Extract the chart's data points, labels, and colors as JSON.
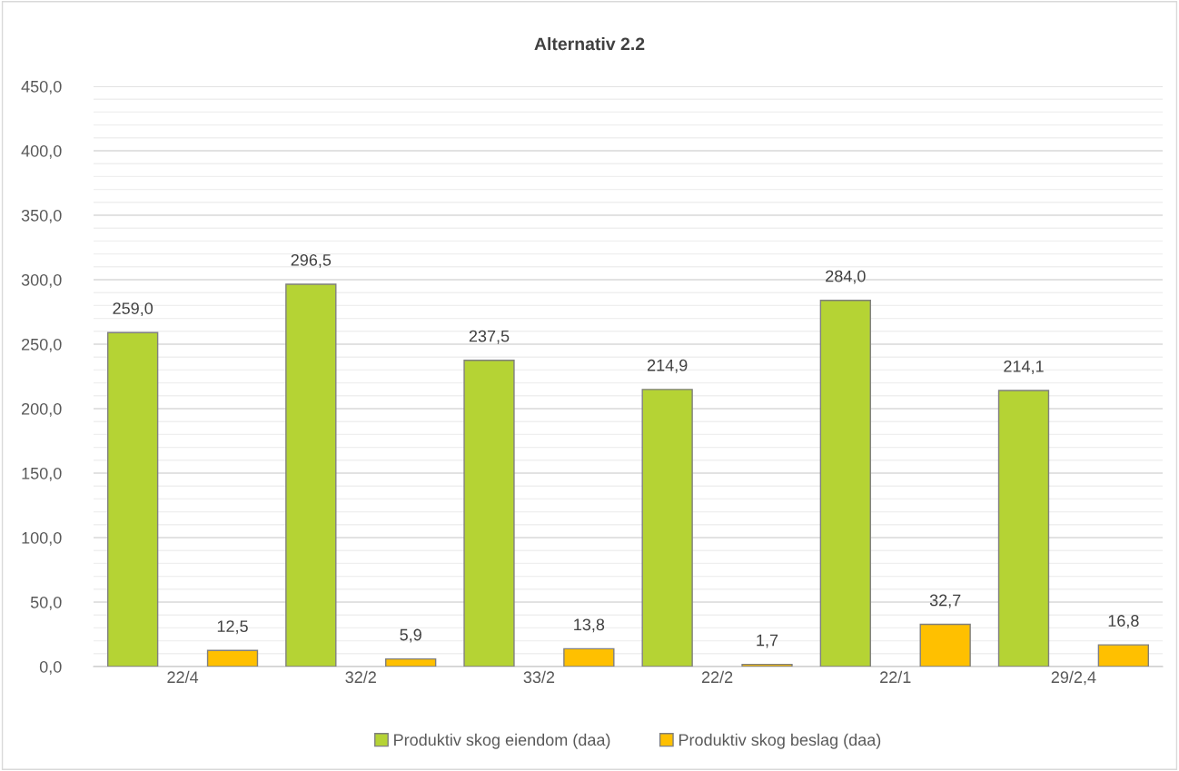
{
  "chart_data": {
    "type": "bar",
    "title": "Alternativ 2.2",
    "categories": [
      "22/4",
      "32/2",
      "33/2",
      "22/2",
      "22/1",
      "29/2,4"
    ],
    "series": [
      {
        "name": "Produktiv skog eiendom (daa)",
        "color": "#b5d334",
        "values": [
          259.0,
          296.5,
          237.5,
          214.9,
          284.0,
          214.1
        ],
        "value_labels": [
          "259,0",
          "296,5",
          "237,5",
          "214,9",
          "284,0",
          "214,1"
        ]
      },
      {
        "name": "Produktiv skog beslag (daa)",
        "color": "#ffc000",
        "values": [
          12.5,
          5.9,
          13.8,
          1.7,
          32.7,
          16.8
        ],
        "value_labels": [
          "12,5",
          "5,9",
          "13,8",
          "1,7",
          "32,7",
          "16,8"
        ]
      }
    ],
    "ylim": [
      0,
      450
    ],
    "yticks": [
      {
        "value": 0,
        "label": "0,0"
      },
      {
        "value": 10,
        "label": null
      },
      {
        "value": 20,
        "label": null
      },
      {
        "value": 30,
        "label": null
      },
      {
        "value": 40,
        "label": null
      },
      {
        "value": 50,
        "label": "50,0"
      },
      {
        "value": 60,
        "label": null
      },
      {
        "value": 70,
        "label": null
      },
      {
        "value": 80,
        "label": null
      },
      {
        "value": 90,
        "label": null
      },
      {
        "value": 100,
        "label": "100,0"
      },
      {
        "value": 110,
        "label": null
      },
      {
        "value": 120,
        "label": null
      },
      {
        "value": 130,
        "label": null
      },
      {
        "value": 140,
        "label": null
      },
      {
        "value": 150,
        "label": "150,0"
      },
      {
        "value": 160,
        "label": null
      },
      {
        "value": 170,
        "label": null
      },
      {
        "value": 180,
        "label": null
      },
      {
        "value": 190,
        "label": null
      },
      {
        "value": 200,
        "label": "200,0"
      },
      {
        "value": 210,
        "label": null
      },
      {
        "value": 220,
        "label": null
      },
      {
        "value": 230,
        "label": null
      },
      {
        "value": 240,
        "label": null
      },
      {
        "value": 250,
        "label": "250,0"
      },
      {
        "value": 260,
        "label": null
      },
      {
        "value": 270,
        "label": null
      },
      {
        "value": 280,
        "label": null
      },
      {
        "value": 290,
        "label": null
      },
      {
        "value": 300,
        "label": "300,0"
      },
      {
        "value": 310,
        "label": null
      },
      {
        "value": 320,
        "label": null
      },
      {
        "value": 330,
        "label": null
      },
      {
        "value": 340,
        "label": null
      },
      {
        "value": 350,
        "label": "350,0"
      },
      {
        "value": 360,
        "label": null
      },
      {
        "value": 370,
        "label": null
      },
      {
        "value": 380,
        "label": null
      },
      {
        "value": 390,
        "label": null
      },
      {
        "value": 400,
        "label": "400,0"
      },
      {
        "value": 410,
        "label": null
      },
      {
        "value": 420,
        "label": null
      },
      {
        "value": 430,
        "label": null
      },
      {
        "value": 440,
        "label": null
      },
      {
        "value": 450,
        "label": "450,0"
      }
    ],
    "grid": "y",
    "legend": "bottom"
  }
}
